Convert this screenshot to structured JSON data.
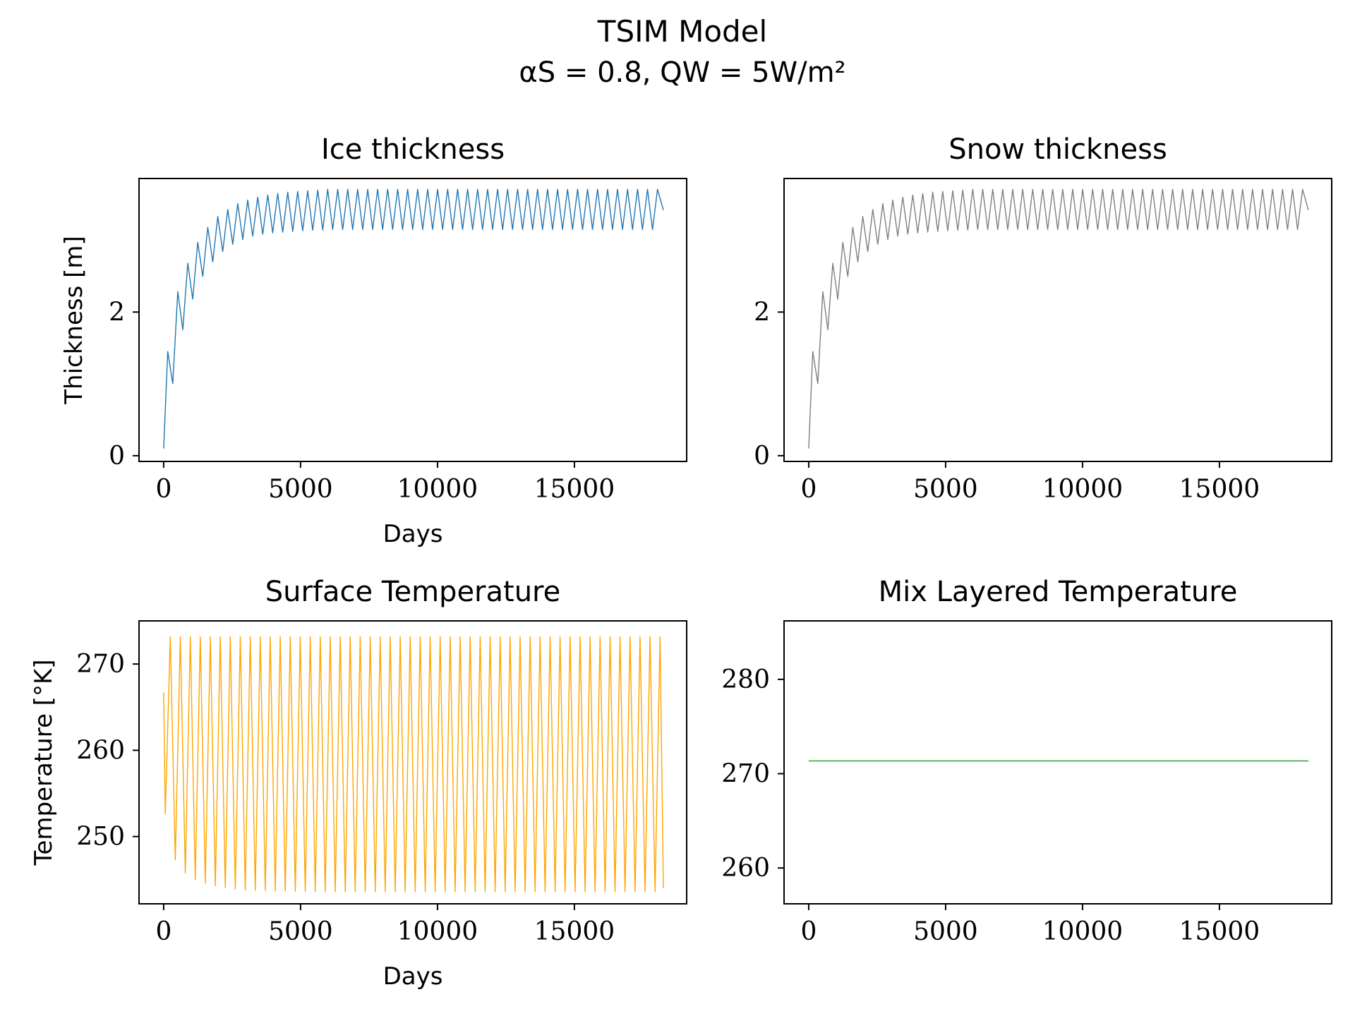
{
  "figure": {
    "title_line1": "TSIM Model",
    "title_line2": "αS = 0.8, QW = 5W/m²"
  },
  "chart_data": [
    {
      "type": "line",
      "title": "Ice thickness",
      "xlabel": "Days",
      "ylabel": "Thickness [m]",
      "xlim": [
        -900,
        19100
      ],
      "ylim": [
        -0.08,
        3.86
      ],
      "xticks": [
        0,
        5000,
        10000,
        15000
      ],
      "yticks": [
        0,
        2
      ],
      "color": "#1f77b4",
      "series": [
        {
          "kind": "seasonal",
          "x_start": 0,
          "x_end": 18250,
          "period": 365,
          "start": 0.1,
          "x_peaks": [
            150,
            510,
            880,
            1240,
            1610,
            1970,
            2340,
            2700,
            3070,
            3430,
            3800,
            4160,
            4530,
            4890,
            5260,
            5620,
            6000,
            9000,
            18000
          ],
          "y_peaks": [
            1.45,
            2.28,
            2.68,
            2.97,
            3.18,
            3.33,
            3.43,
            3.51,
            3.56,
            3.6,
            3.63,
            3.65,
            3.67,
            3.68,
            3.69,
            3.7,
            3.71,
            3.71,
            3.71
          ],
          "x_troughs": [
            260,
            620,
            990,
            1350,
            1720,
            2080,
            2450,
            2810,
            3180,
            3540,
            3910,
            4270,
            4640,
            5000,
            5370,
            5730,
            6100,
            9000,
            18000
          ],
          "y_troughs": [
            0.84,
            1.66,
            2.11,
            2.45,
            2.67,
            2.82,
            2.93,
            3.0,
            3.05,
            3.08,
            3.1,
            3.11,
            3.12,
            3.13,
            3.14,
            3.14,
            3.15,
            3.15,
            3.15
          ],
          "end": 3.42
        }
      ]
    },
    {
      "type": "line",
      "title": "Snow thickness",
      "xlabel": "",
      "ylabel": "",
      "xlim": [
        -900,
        19100
      ],
      "ylim": [
        -0.08,
        3.86
      ],
      "xticks": [
        0,
        5000,
        10000,
        15000
      ],
      "yticks": [
        0,
        2
      ],
      "color": "#7f7f7f",
      "series": [
        {
          "kind": "seasonal",
          "x_start": 0,
          "x_end": 18250,
          "period": 365,
          "start": 0.1,
          "x_peaks": [
            150,
            510,
            880,
            1240,
            1610,
            1970,
            2340,
            2700,
            3070,
            3430,
            3800,
            4160,
            4530,
            4890,
            5260,
            5620,
            6000,
            9000,
            18000
          ],
          "y_peaks": [
            1.45,
            2.28,
            2.68,
            2.97,
            3.18,
            3.33,
            3.43,
            3.51,
            3.56,
            3.6,
            3.63,
            3.65,
            3.67,
            3.68,
            3.69,
            3.7,
            3.71,
            3.71,
            3.71
          ],
          "x_troughs": [
            260,
            620,
            990,
            1350,
            1720,
            2080,
            2450,
            2810,
            3180,
            3540,
            3910,
            4270,
            4640,
            5000,
            5370,
            5730,
            6100,
            9000,
            18000
          ],
          "y_troughs": [
            0.84,
            1.66,
            2.11,
            2.45,
            2.67,
            2.82,
            2.93,
            3.0,
            3.05,
            3.08,
            3.1,
            3.11,
            3.12,
            3.13,
            3.14,
            3.14,
            3.15,
            3.15,
            3.15
          ],
          "end": 3.42
        }
      ]
    },
    {
      "type": "line",
      "title": "Surface Temperature",
      "xlabel": "Days",
      "ylabel": "Temperature [°K]",
      "xlim": [
        -900,
        19100
      ],
      "ylim": [
        242.2,
        275
      ],
      "xticks": [
        0,
        5000,
        10000,
        15000
      ],
      "yticks": [
        250,
        260,
        270
      ],
      "color": "#ffa500",
      "series": [
        {
          "kind": "seasonal",
          "x_start": 0,
          "x_end": 18250,
          "period": 365,
          "start": 266.7,
          "x_peaks": [
            180,
            18000
          ],
          "y_peaks": [
            273.15,
            273.15
          ],
          "x_troughs": [
            60,
            420,
            780,
            1150,
            1510,
            1880,
            2240,
            2610,
            3000,
            4000,
            6000,
            18000
          ],
          "y_troughs": [
            252.6,
            247.3,
            245.8,
            245.0,
            244.6,
            244.3,
            244.1,
            243.9,
            243.8,
            243.7,
            243.6,
            243.6
          ],
          "end": 244.0
        }
      ]
    },
    {
      "type": "line",
      "title": "Mix Layered Temperature",
      "xlabel": "",
      "ylabel": "",
      "xlim": [
        -900,
        19100
      ],
      "ylim": [
        256.2,
        286.2
      ],
      "xticks": [
        0,
        5000,
        10000,
        15000
      ],
      "yticks": [
        260,
        270,
        280
      ],
      "color": "#2ca02c",
      "series": [
        {
          "kind": "constant",
          "x": [
            0,
            18250
          ],
          "y": [
            271.35,
            271.35
          ]
        }
      ]
    }
  ]
}
